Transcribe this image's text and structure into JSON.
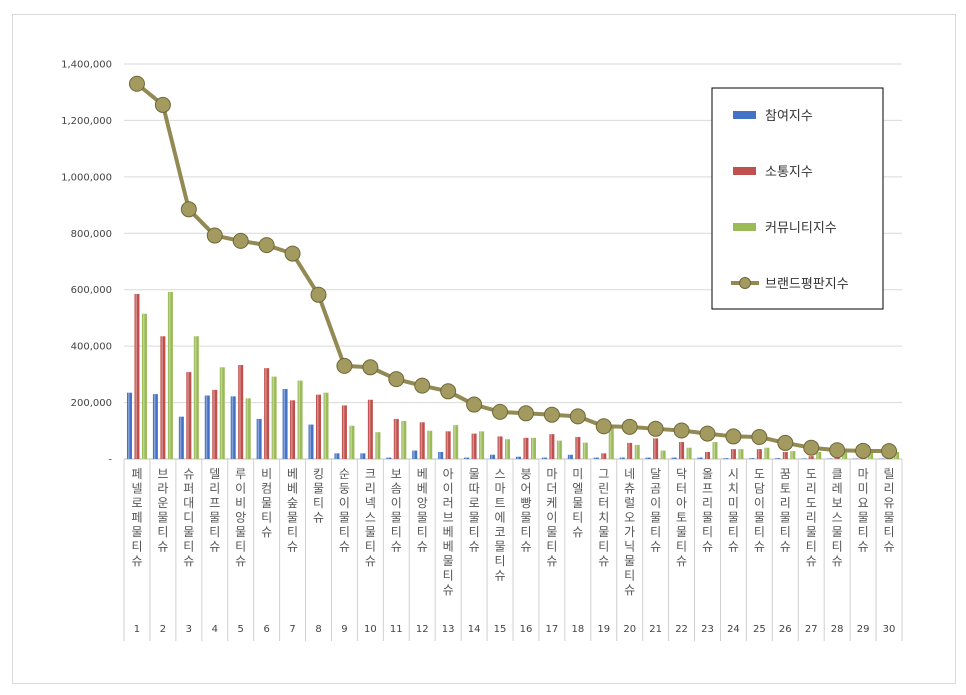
{
  "chart_data": {
    "type": "bar",
    "title": "",
    "xlabel": "",
    "ylabel": "",
    "ylim": [
      0,
      1400000
    ],
    "yticks": [
      0,
      200000,
      400000,
      600000,
      800000,
      1000000,
      1200000,
      1400000
    ],
    "ytick_labels": [
      "-",
      "200,000",
      "400,000",
      "600,000",
      "800,000",
      "1,000,000",
      "1,200,000",
      "1,400,000"
    ],
    "grid": true,
    "legend_position": "top-right",
    "categories": [
      "페넬로페 물티슈",
      "브라운 물티슈",
      "슈퍼대디 물티슈",
      "델리프 물티슈",
      "루이비앙 물티슈",
      "비컴 물티슈",
      "베베숲 물티슈",
      "킹 물티슈",
      "순둥이 물티슈",
      "크리넥스 물티슈",
      "보솜이 물티슈",
      "베베앙 물티슈",
      "아이러브베베 물티슈",
      "물따로 물티슈",
      "스마트에코 물티슈",
      "붕어빵 물티슈",
      "마더케이 물티슈",
      "미엘 물티슈",
      "그린터치 물티슈",
      "네츄럴오가닉 물티슈",
      "달곰이 물티슈",
      "닥터아토 물티슈",
      "올프리 물티슈",
      "시치미 물티슈",
      "도담이 물티슈",
      "꿈토리 물티슈",
      "도리도리 물티슈",
      "클레보스 물티슈",
      "마미요 물티슈",
      "릴리유 물티슈"
    ],
    "ranks": [
      "1",
      "2",
      "3",
      "4",
      "5",
      "6",
      "7",
      "8",
      "9",
      "10",
      "11",
      "12",
      "13",
      "14",
      "15",
      "16",
      "17",
      "18",
      "19",
      "20",
      "21",
      "22",
      "23",
      "24",
      "25",
      "26",
      "27",
      "28",
      "29",
      "30"
    ],
    "series": [
      {
        "name": "참여지수",
        "kind": "bar",
        "color": "#4472c4",
        "values": [
          235000,
          230000,
          150000,
          225000,
          222000,
          142000,
          248000,
          122000,
          20000,
          20000,
          5000,
          30000,
          25000,
          5000,
          15000,
          8000,
          5000,
          15000,
          5000,
          5000,
          5000,
          5000,
          5000,
          3000,
          3000,
          3000,
          2000,
          1000,
          1000,
          1000
        ]
      },
      {
        "name": "소통지수",
        "kind": "bar",
        "color": "#c0504d",
        "values": [
          585000,
          435000,
          308000,
          245000,
          333000,
          322000,
          208000,
          228000,
          190000,
          210000,
          142000,
          130000,
          98000,
          90000,
          80000,
          75000,
          88000,
          78000,
          20000,
          57000,
          73000,
          60000,
          25000,
          35000,
          35000,
          25000,
          10000,
          5000,
          3000,
          3000
        ]
      },
      {
        "name": "커뮤니티지수",
        "kind": "bar",
        "color": "#9bbb59",
        "values": [
          515000,
          592000,
          435000,
          325000,
          215000,
          292000,
          278000,
          235000,
          118000,
          95000,
          135000,
          100000,
          120000,
          98000,
          70000,
          75000,
          65000,
          58000,
          112000,
          50000,
          30000,
          40000,
          60000,
          35000,
          40000,
          28000,
          25000,
          25000,
          25000,
          25000
        ]
      },
      {
        "name": "브랜드평판지수",
        "kind": "line",
        "color": "#938953",
        "values": [
          1330000,
          1255000,
          885000,
          792000,
          773000,
          758000,
          728000,
          582000,
          330000,
          325000,
          283000,
          260000,
          240000,
          193000,
          167000,
          162000,
          157000,
          151000,
          116000,
          114000,
          107000,
          101000,
          90000,
          80000,
          78000,
          57000,
          40000,
          31000,
          29000,
          28000
        ]
      }
    ]
  }
}
